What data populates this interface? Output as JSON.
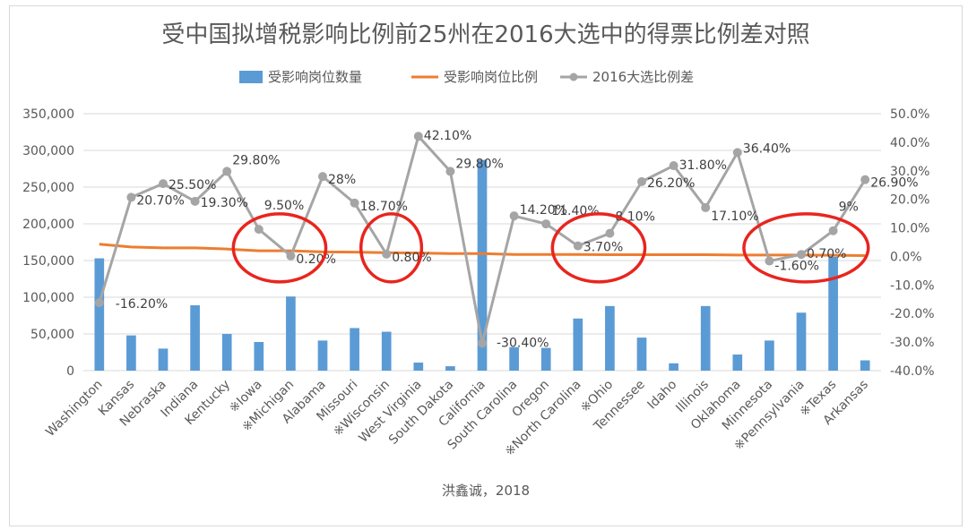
{
  "chart_data": {
    "type": "bar",
    "title": "受中国拟增税影响比例前25州在2016大选中的得票比例差对照",
    "xlabel": "洪鑫诚，2018",
    "categories": [
      "Washington",
      "Kansas",
      "Nebraska",
      "Indiana",
      "Kentucky",
      "※Iowa",
      "※Michigan",
      "Alabama",
      "Missouri",
      "※Wisconsin",
      "West Virginia",
      "South Dakota",
      "California",
      "South Carolina",
      "Oregon",
      "※North Carolina",
      "※Ohio",
      "Tennessee",
      "Idaho",
      "Illinois",
      "Oklahoma",
      "Minnesota",
      "※Pennsylvania",
      "※Texas",
      "Arkansas"
    ],
    "y_left": {
      "ticks": [
        "0",
        "50,000",
        "100,000",
        "150,000",
        "200,000",
        "250,000",
        "300,000",
        "350,000"
      ],
      "lim": [
        0,
        350000
      ]
    },
    "y_right": {
      "ticks": [
        "-40.0%",
        "-30.0%",
        "-20.0%",
        "-10.0%",
        "0.0%",
        "10.0%",
        "20.0%",
        "30.0%",
        "40.0%",
        "50.0%"
      ],
      "lim": [
        -40,
        50
      ]
    },
    "legend_position": "top",
    "grid": true,
    "series": [
      {
        "name": "受影响岗位数量",
        "type": "bar",
        "axis": "left",
        "color": "#5b9bd5",
        "values": [
          153000,
          48000,
          30000,
          89000,
          50000,
          39000,
          101000,
          41000,
          58000,
          53000,
          11000,
          6000,
          287000,
          32000,
          31000,
          71000,
          88000,
          45000,
          10000,
          88000,
          22000,
          41000,
          79000,
          155000,
          14000
        ]
      },
      {
        "name": "受影响岗位比例",
        "type": "line",
        "axis": "right",
        "color": "#ed7d31",
        "values": [
          4.3,
          3.3,
          3.0,
          3.0,
          2.6,
          2.0,
          2.0,
          1.6,
          1.5,
          1.3,
          1.2,
          1.0,
          1.0,
          0.7,
          0.7,
          0.7,
          0.6,
          0.6,
          0.6,
          0.6,
          0.5,
          0.5,
          0.5,
          0.4,
          0.3
        ]
      },
      {
        "name": "2016大选比例差",
        "type": "line",
        "axis": "right",
        "color": "#a5a5a5",
        "values": [
          -16.2,
          20.7,
          25.5,
          19.3,
          29.8,
          9.5,
          0.2,
          28.0,
          18.7,
          0.8,
          42.1,
          29.8,
          -30.4,
          14.2,
          11.4,
          3.7,
          8.1,
          26.2,
          31.8,
          17.1,
          36.4,
          -1.6,
          0.7,
          9.0,
          26.9
        ],
        "labels": [
          "-16.20%",
          "20.70%",
          "25.50%",
          "19.30%",
          "29.80%",
          "9.50%",
          "0.20%",
          "28%",
          "18.70%",
          "0.80%",
          "42.10%",
          "29.80%",
          "-30.40%",
          "14.20%",
          "11.40%",
          "3.70%",
          "8.10%",
          "26.20%",
          "31.80%",
          "17.10%",
          "36.40%",
          "-1.60%",
          "0.70%",
          "9%",
          "26.90%"
        ]
      }
    ],
    "annotations": {
      "red_circle_groups": [
        [
          5,
          6
        ],
        [
          9
        ],
        [
          15,
          16
        ],
        [
          21,
          22,
          23
        ]
      ]
    }
  }
}
